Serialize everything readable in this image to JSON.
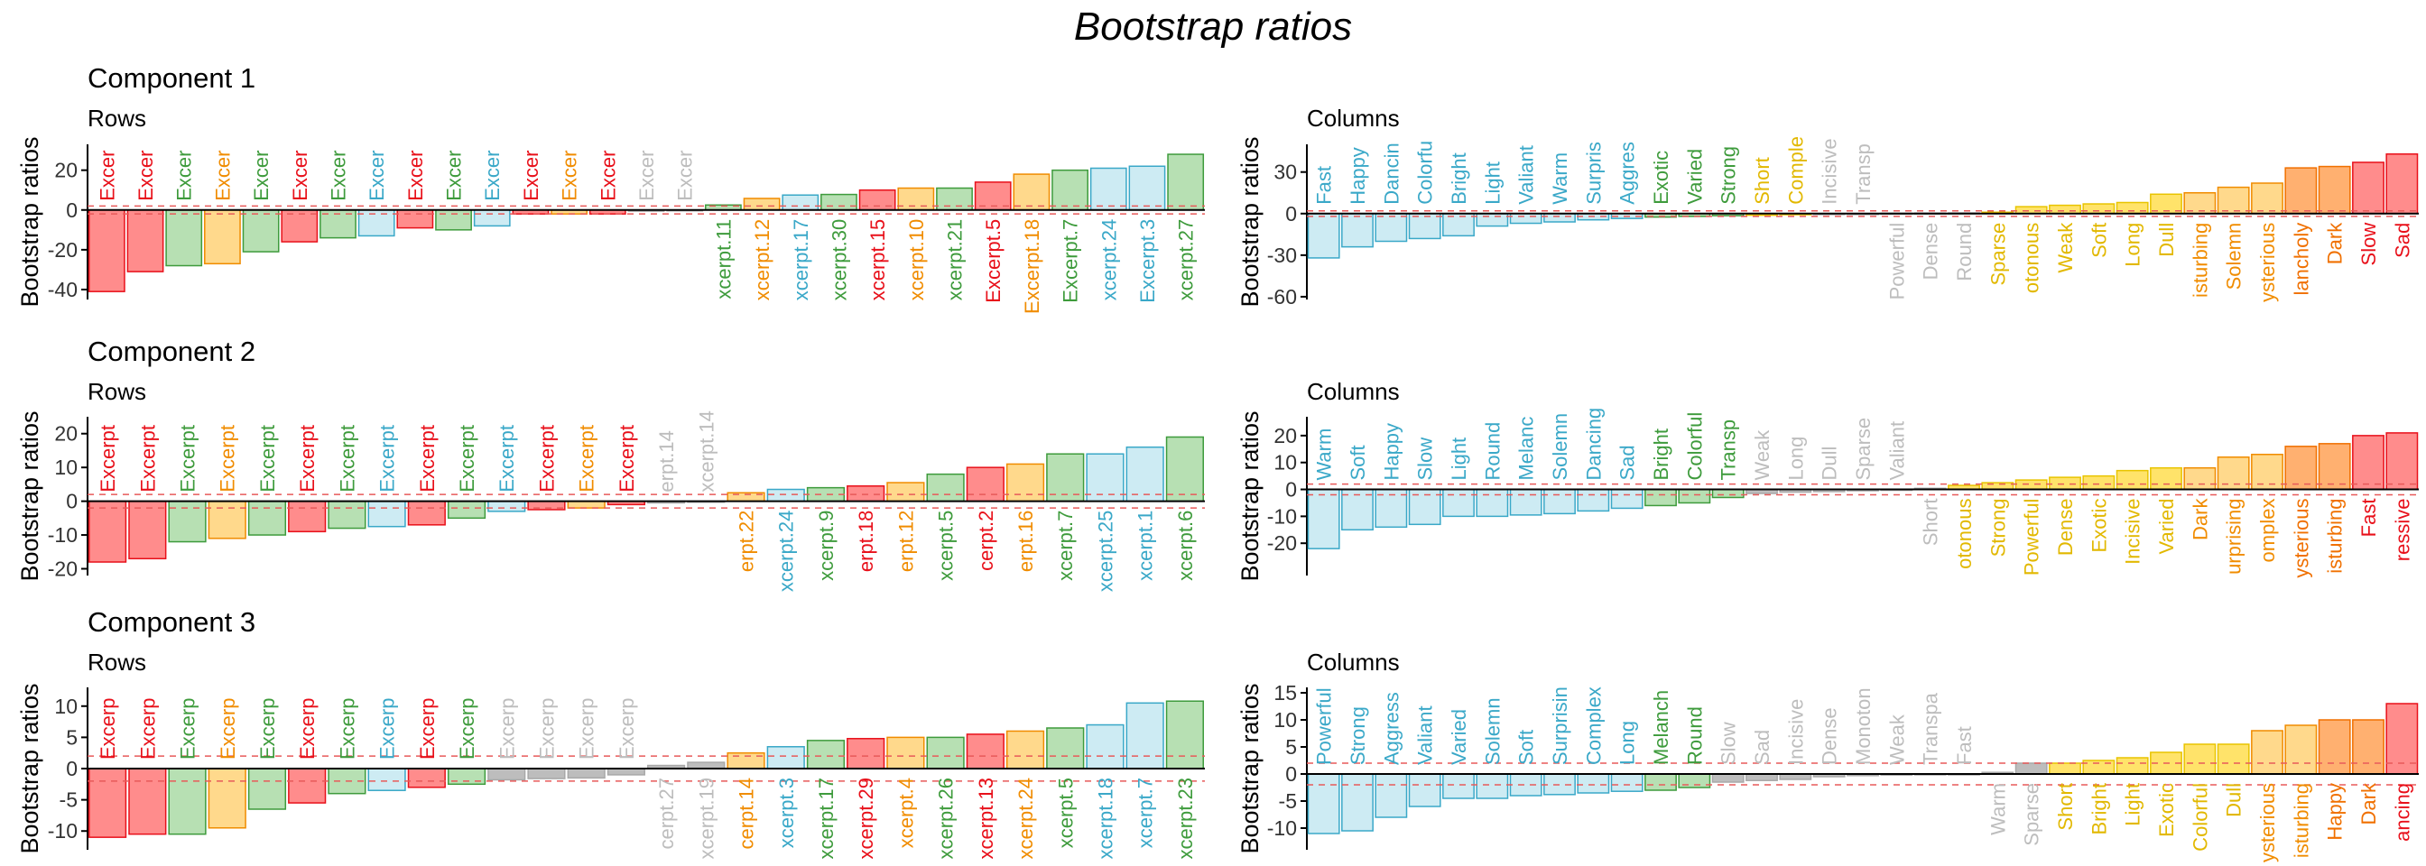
{
  "title": "Bootstrap ratios",
  "colors": {
    "red": "#E8101A",
    "green": "#3E9B3C",
    "orange": "#F08C00",
    "blue": "#3AA8C8",
    "grey": "#B8B8B8",
    "refline": "#E85A5A"
  },
  "chart_data": [
    {
      "type": "bar",
      "component": "Component 1",
      "subtitle": "Rows",
      "ylabel": "Bootstrap ratios",
      "ylim": [
        -45,
        33
      ],
      "yticks": [
        20,
        0,
        -20,
        -40
      ],
      "threshold": 2,
      "categories": [
        "Excer",
        "Excer",
        "Excer",
        "Excer",
        "Excer",
        "Excer",
        "Excer",
        "Excer",
        "Excer",
        "Excer",
        "Excer",
        "Excer",
        "Excer",
        "Excer",
        "Excer",
        "Excer",
        "xcerpt.11",
        "xcerpt.12",
        "xcerpt.17",
        "xcerpt.30",
        "xcerpt.15",
        "xcerpt.10",
        "xcerpt.21",
        "Excerpt.5",
        "Excerpt.18",
        "Excerpt.7",
        "xcerpt.24",
        "Excerpt.3",
        "xcerpt.27"
      ],
      "values": [
        -41,
        -31,
        -28,
        -27,
        -21,
        -16,
        -14,
        -13,
        -9,
        -10,
        -8,
        -2,
        -2,
        -2,
        -0.6,
        -0.4,
        2.5,
        5.8,
        7.5,
        7.8,
        10,
        11,
        11,
        14,
        18,
        20,
        21,
        22,
        28
      ],
      "colors": [
        "red",
        "red",
        "green",
        "orange",
        "green",
        "red",
        "green",
        "blue",
        "red",
        "green",
        "blue",
        "red",
        "orange",
        "red",
        "grey",
        "grey",
        "green",
        "orange",
        "blue",
        "green",
        "red",
        "orange",
        "green",
        "red",
        "orange",
        "green",
        "blue",
        "blue",
        "green"
      ]
    },
    {
      "type": "bar",
      "component": "",
      "subtitle": "Columns",
      "ylabel": "Bootstrap ratios",
      "ylim": [
        -62,
        50
      ],
      "yticks": [
        30,
        0,
        -30,
        -60
      ],
      "threshold": 2,
      "categories": [
        "Fast",
        "Happy",
        "Dancin",
        "Colorfu",
        "Bright",
        "Light",
        "Valiant",
        "Warm",
        "Surpris",
        "Aggres",
        "Exotic",
        "Varied",
        "Strong",
        "Short",
        "Comple",
        "Incisive",
        "Transp",
        "Powerful",
        "Dense",
        "Round",
        "Sparse",
        "otonous",
        "Weak",
        "Soft",
        "Long",
        "Dull",
        "isturbing",
        "Solemn",
        "ysterious",
        "lancholy",
        "Dark",
        "Slow",
        "Sad"
      ],
      "values": [
        -32,
        -24,
        -20,
        -18,
        -16,
        -9,
        -7,
        -6,
        -4.5,
        -3.5,
        -2.5,
        -2,
        -1.5,
        -1.2,
        -0.8,
        -0.3,
        -0.2,
        0.3,
        0.4,
        0.5,
        1,
        5,
        6,
        7,
        8,
        14,
        15,
        19,
        22,
        33,
        34,
        37,
        43
      ],
      "colors": [
        "blue",
        "blue",
        "blue",
        "blue",
        "blue",
        "blue",
        "blue",
        "blue",
        "blue",
        "blue",
        "green",
        "green",
        "green",
        "yellow",
        "yellow",
        "grey",
        "grey",
        "grey",
        "grey",
        "grey",
        "yellow",
        "yellow",
        "yellow",
        "yellow",
        "yellow",
        "yellow",
        "orange",
        "orange",
        "orange",
        "darkorange",
        "darkorange",
        "red",
        "red"
      ]
    },
    {
      "type": "bar",
      "component": "Component 2",
      "subtitle": "Rows",
      "ylabel": "Bootstrap ratios",
      "ylim": [
        -22,
        25
      ],
      "yticks": [
        20,
        10,
        0,
        -10,
        -20
      ],
      "threshold": 2,
      "categories": [
        "Excerpt",
        "Excerpt",
        "Excerpt",
        "Excerpt",
        "Excerpt",
        "Excerpt",
        "Excerpt",
        "Excerpt",
        "Excerpt",
        "Excerpt",
        "Excerpt",
        "Excerpt",
        "Excerpt",
        "Excerpt",
        "erpt.14",
        "xcerpt.14",
        "erpt.22",
        "xcerpt.24",
        "xcerpt.9",
        "erpt.18",
        "erpt.12",
        "xcerpt.5",
        "cerpt.2",
        "erpt.16",
        "xcerpt.7",
        "xcerpt.25",
        "xcerpt.1",
        "xcerpt.6"
      ],
      "values": [
        -18,
        -17,
        -12,
        -11,
        -10,
        -9,
        -8,
        -7.5,
        -7,
        -5,
        -3,
        -2.5,
        -2,
        -1,
        -0.5,
        -0.3,
        2.5,
        3.5,
        4,
        4.5,
        5.5,
        8,
        10,
        11,
        14,
        14,
        16,
        19
      ],
      "colors": [
        "red",
        "red",
        "green",
        "orange",
        "green",
        "red",
        "green",
        "blue",
        "red",
        "green",
        "blue",
        "red",
        "orange",
        "red",
        "grey",
        "grey",
        "orange",
        "blue",
        "green",
        "red",
        "orange",
        "green",
        "red",
        "orange",
        "green",
        "blue",
        "blue",
        "green"
      ]
    },
    {
      "type": "bar",
      "component": "",
      "subtitle": "Columns",
      "ylabel": "Bootstrap ratios",
      "ylim": [
        -32,
        27
      ],
      "yticks": [
        20,
        10,
        0,
        -10,
        -20
      ],
      "threshold": 2,
      "categories": [
        "Warm",
        "Soft",
        "Happy",
        "Slow",
        "Light",
        "Round",
        "Melanc",
        "Solemn",
        "Dancing",
        "Sad",
        "Bright",
        "Colorful",
        "Transp",
        "Weak",
        "Long",
        "Dull",
        "Sparse",
        "Valiant",
        "Short",
        "otonous",
        "Strong",
        "Powerful",
        "Dense",
        "Exotic",
        "Incisive",
        "Varied",
        "Dark",
        "urprising",
        "omplex",
        "ysterious",
        "isturbing",
        "Fast",
        "ressive"
      ],
      "values": [
        -22,
        -15,
        -14,
        -13,
        -10,
        -10,
        -9.5,
        -9,
        -8,
        -7,
        -6,
        -5,
        -3,
        -1.5,
        -1,
        -0.8,
        -0.5,
        -0.3,
        0.4,
        1.5,
        2.5,
        3.5,
        4.5,
        5,
        7,
        8,
        8,
        12,
        13,
        16,
        17,
        20,
        21
      ],
      "colors": [
        "blue",
        "blue",
        "blue",
        "blue",
        "blue",
        "blue",
        "blue",
        "blue",
        "blue",
        "blue",
        "green",
        "green",
        "green",
        "grey",
        "grey",
        "grey",
        "grey",
        "grey",
        "grey",
        "yellow",
        "yellow",
        "yellow",
        "yellow",
        "yellow",
        "yellow",
        "yellow",
        "orange",
        "orange",
        "orange",
        "darkorange",
        "darkorange",
        "red",
        "red"
      ]
    },
    {
      "type": "bar",
      "component": "Component 3",
      "subtitle": "Rows",
      "ylabel": "Bootstrap ratios",
      "ylim": [
        -13,
        13
      ],
      "yticks": [
        10,
        5,
        0,
        -5,
        -10
      ],
      "threshold": 2,
      "categories": [
        "Excerp",
        "Excerp",
        "Excerp",
        "Excerp",
        "Excerp",
        "Excerp",
        "Excerp",
        "Excerp",
        "Excerp",
        "Excerp",
        "Excerp",
        "Excerp",
        "Excerp",
        "Excerp",
        "cerpt.27",
        "xcerpt.19",
        "cerpt.14",
        "xcerpt.3",
        "xcerpt.17",
        "xcerpt.29",
        "xcerpt.4",
        "xcerpt.26",
        "xcerpt.13",
        "xcerpt.24",
        "xcerpt.5",
        "xcerpt.18",
        "xcerpt.7",
        "xcerpt.23"
      ],
      "values": [
        -11,
        -10.5,
        -10.5,
        -9.5,
        -6.5,
        -5.5,
        -4,
        -3.5,
        -3,
        -2.5,
        -1.8,
        -1.6,
        -1.5,
        -1,
        0.5,
        1,
        2.5,
        3.5,
        4.5,
        4.8,
        5,
        5,
        5.5,
        6,
        6.5,
        7,
        10.5,
        10.8
      ],
      "colors": [
        "red",
        "red",
        "green",
        "orange",
        "green",
        "red",
        "green",
        "blue",
        "red",
        "green",
        "grey",
        "grey",
        "grey",
        "grey",
        "grey",
        "grey",
        "orange",
        "blue",
        "green",
        "red",
        "orange",
        "green",
        "red",
        "orange",
        "green",
        "blue",
        "blue",
        "green"
      ]
    },
    {
      "type": "bar",
      "component": "",
      "subtitle": "Columns",
      "ylabel": "Bootstrap ratios",
      "ylim": [
        -14,
        16
      ],
      "yticks": [
        15,
        10,
        5,
        0,
        -5,
        -10
      ],
      "threshold": 2,
      "categories": [
        "Powerful",
        "Strong",
        "Aggress",
        "Valiant",
        "Varied",
        "Solemn",
        "Soft",
        "Surprisin",
        "Complex",
        "Long",
        "Melanch",
        "Round",
        "Slow",
        "Sad",
        "Incisive",
        "Dense",
        "Monoton",
        "Weak",
        "Transpa",
        "Fast",
        "Warm",
        "Sparse",
        "Short",
        "Bright",
        "Light",
        "Exotic",
        "Colorful",
        "Dull",
        "ysterious",
        "isturbing",
        "Happy",
        "Dark",
        "ancing"
      ],
      "values": [
        -11,
        -10.5,
        -8,
        -6,
        -4.5,
        -4.5,
        -4,
        -3.8,
        -3.5,
        -3.2,
        -3,
        -2.5,
        -1.5,
        -1.2,
        -1,
        -0.5,
        -0.3,
        -0.2,
        -0.1,
        -0.05,
        0.3,
        2,
        2,
        2.5,
        3,
        4,
        5.5,
        5.5,
        8,
        9,
        10,
        10,
        13
      ],
      "colors": [
        "blue",
        "blue",
        "blue",
        "blue",
        "blue",
        "blue",
        "blue",
        "blue",
        "blue",
        "blue",
        "green",
        "green",
        "grey",
        "grey",
        "grey",
        "grey",
        "grey",
        "grey",
        "grey",
        "grey",
        "grey",
        "grey",
        "yellow",
        "yellow",
        "yellow",
        "yellow",
        "yellow",
        "yellow",
        "orange",
        "orange",
        "darkorange",
        "darkorange",
        "red"
      ]
    }
  ]
}
